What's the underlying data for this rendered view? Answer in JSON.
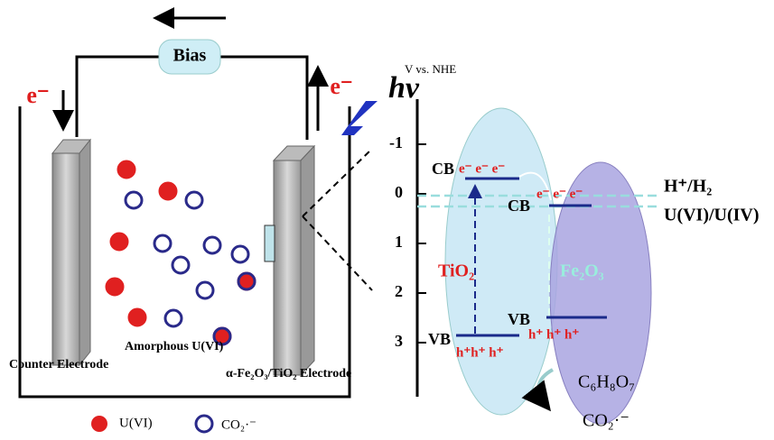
{
  "bias": "Bias",
  "electron_left": "e⁻",
  "electron_right": "e⁻",
  "light": "hv",
  "energy_axis": {
    "label": "V vs. NHE",
    "ticks": [
      "-1",
      "0",
      "1",
      "2",
      "3"
    ]
  },
  "tio2": {
    "name": "TiO₂",
    "cb": "CB",
    "vb": "VB",
    "electrons": "e⁻ e⁻ e⁻",
    "holes": "h⁺h⁺ h⁺"
  },
  "fe2o3": {
    "name": "Fe₂O₃",
    "cb": "CB",
    "vb": "VB",
    "electrons": "e⁻ e⁻ e⁻",
    "holes": "h⁺ h⁺ h⁺"
  },
  "potentials": [
    "H⁺/H₂",
    "U(VI)/U(IV)"
  ],
  "reactant": "C₆H₈O₇",
  "product": "CO₂·⁻",
  "labels": {
    "counter": "Counter Electrode",
    "amorphous": "Amorphous U(VI)",
    "working": "α-Fe₂O₃/TiO₂ Electrode"
  },
  "legend": [
    "U(VI)",
    "CO₂·⁻"
  ]
}
